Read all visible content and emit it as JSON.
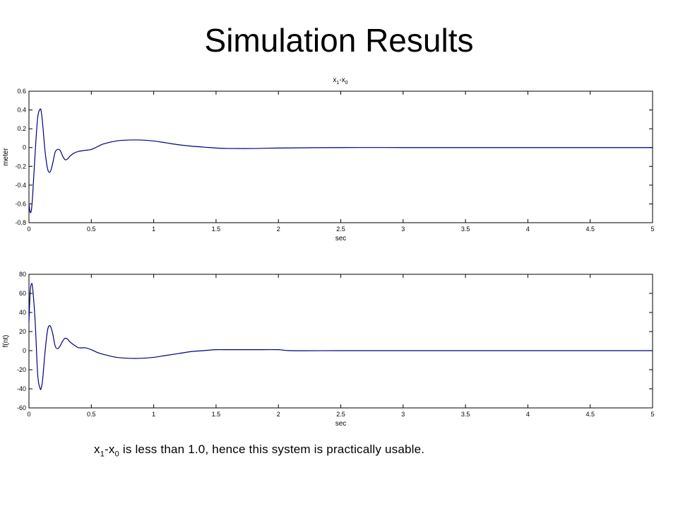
{
  "slide": {
    "title": "Simulation Results",
    "caption": {
      "v1": "x",
      "s1": "1",
      "dash": "-",
      "v2": "x",
      "s2": "0",
      "rest": " is less than 1.0, hence this system is practically usable."
    }
  },
  "chart_data": [
    {
      "type": "line",
      "title": "x1-x0",
      "title_parts": {
        "a": "x",
        "a_sub": "1",
        "dash": "-",
        "b": "x",
        "b_sub": "0"
      },
      "xlabel": "sec",
      "ylabel": "meter",
      "xlim": [
        0,
        5
      ],
      "ylim": [
        -0.8,
        0.6
      ],
      "xticks": [
        "0",
        "0.5",
        "1",
        "1.5",
        "2",
        "2.5",
        "3",
        "3.5",
        "4",
        "4.5",
        "5"
      ],
      "yticks": [
        "0.6",
        "0.4",
        "0.2",
        "0",
        "-0.2",
        "-0.4",
        "-0.6",
        "-0.8"
      ],
      "grid": false,
      "line_color": "#00007f",
      "series": [
        {
          "x": [
            0,
            0.01,
            0.02,
            0.03,
            0.05,
            0.07,
            0.09,
            0.1,
            0.11,
            0.13,
            0.15,
            0.17,
            0.19,
            0.21,
            0.23,
            0.25,
            0.27,
            0.29,
            0.31,
            0.33,
            0.36,
            0.4,
            0.45,
            0.5,
            0.55,
            0.6,
            0.7,
            0.8,
            0.9,
            1.0,
            1.1,
            1.2,
            1.3,
            1.4,
            1.5,
            1.6,
            1.8,
            2.0,
            2.5,
            3.0,
            3.5,
            4.0,
            4.5,
            5.0
          ],
          "y": [
            -0.6,
            -0.69,
            -0.66,
            -0.5,
            -0.05,
            0.32,
            0.41,
            0.37,
            0.25,
            -0.05,
            -0.23,
            -0.26,
            -0.17,
            -0.05,
            -0.02,
            -0.03,
            -0.09,
            -0.13,
            -0.12,
            -0.09,
            -0.06,
            -0.04,
            -0.03,
            -0.02,
            0.01,
            0.04,
            0.07,
            0.08,
            0.08,
            0.07,
            0.05,
            0.03,
            0.015,
            0.005,
            -0.005,
            -0.01,
            -0.01,
            -0.005,
            0.0,
            0.0,
            0.0,
            0.0,
            0.0,
            0.0
          ]
        }
      ]
    },
    {
      "type": "line",
      "title": "",
      "xlabel": "sec",
      "ylabel": "f(nt)",
      "xlim": [
        0,
        5
      ],
      "ylim": [
        -60,
        80
      ],
      "xticks": [
        "0",
        "0.5",
        "1",
        "1.5",
        "2",
        "2.5",
        "3",
        "3.5",
        "4",
        "4.5",
        "5"
      ],
      "yticks": [
        "80",
        "60",
        "40",
        "20",
        "0",
        "-20",
        "-40",
        "-60"
      ],
      "grid": false,
      "line_color": "#00007f",
      "series": [
        {
          "x": [
            0,
            0.01,
            0.02,
            0.03,
            0.05,
            0.07,
            0.09,
            0.1,
            0.11,
            0.13,
            0.15,
            0.17,
            0.19,
            0.21,
            0.23,
            0.25,
            0.27,
            0.29,
            0.31,
            0.33,
            0.36,
            0.4,
            0.45,
            0.5,
            0.55,
            0.6,
            0.7,
            0.8,
            0.9,
            1.0,
            1.1,
            1.2,
            1.3,
            1.4,
            1.5,
            1.6,
            1.8,
            2.0,
            2.1,
            2.5,
            3.0,
            3.5,
            4.0,
            4.5,
            5.0
          ],
          "y": [
            30,
            62,
            70,
            65,
            30,
            -25,
            -40,
            -38,
            -30,
            0,
            22,
            26,
            18,
            5,
            2,
            5,
            10,
            13,
            12,
            9,
            6,
            3,
            3,
            1,
            -2,
            -4,
            -7,
            -8,
            -8,
            -7,
            -5,
            -3,
            -1,
            0,
            1,
            1,
            1,
            1,
            0,
            0,
            0,
            0,
            0,
            0,
            0
          ]
        }
      ]
    }
  ]
}
